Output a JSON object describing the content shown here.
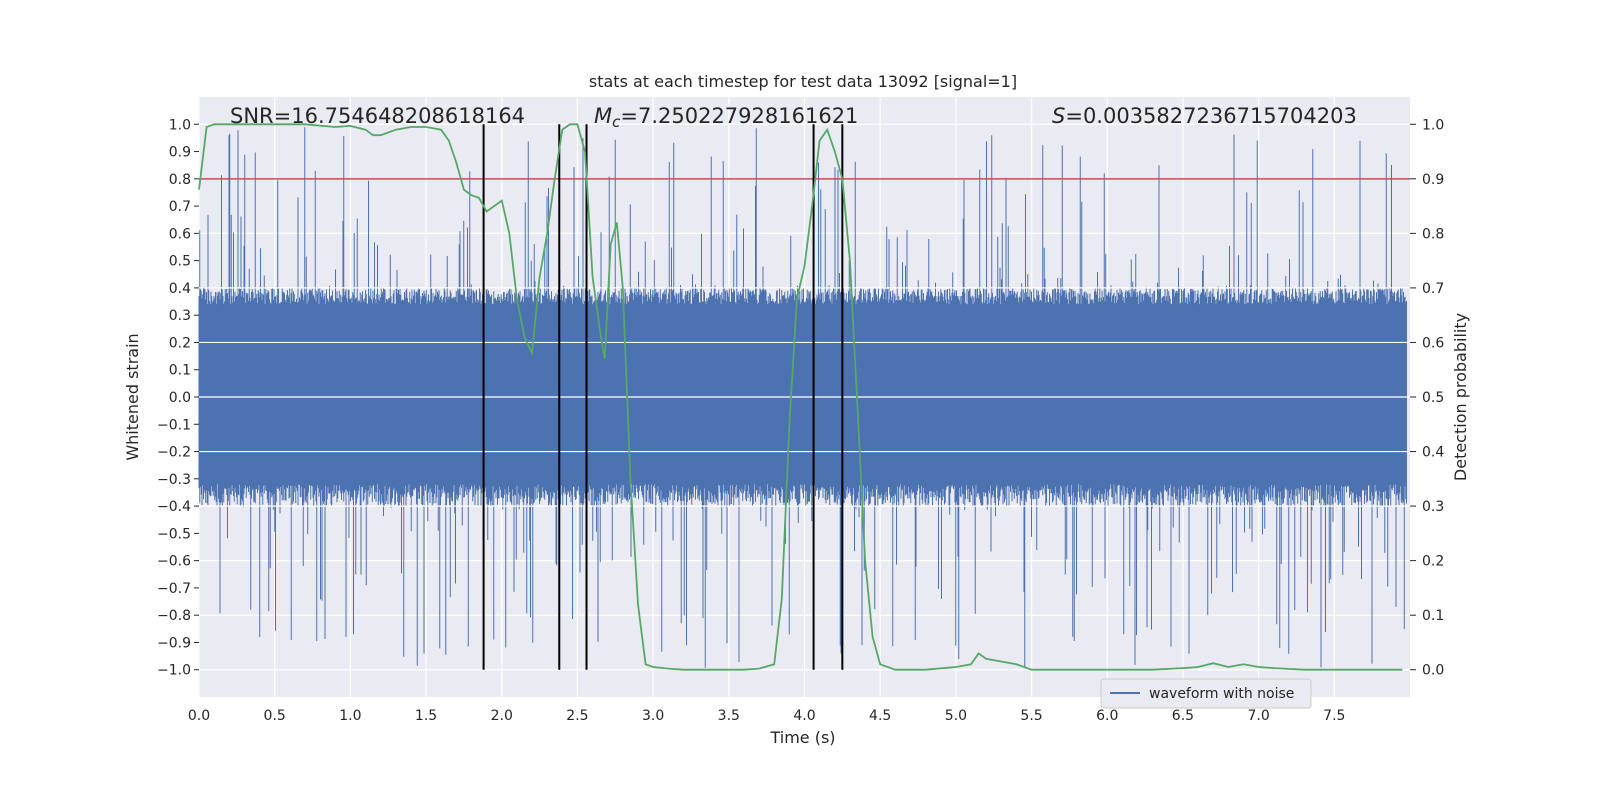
{
  "chart_data": {
    "type": "line",
    "title": "stats at each timestep for test data 13092 [signal=1]",
    "xlabel": "Time (s)",
    "ylabel": "Whitened strain",
    "y2label": "Detection probability",
    "xlim": [
      0.0,
      8.0
    ],
    "ylim": [
      -1.1,
      1.1
    ],
    "y2lim": [
      -0.05,
      1.05
    ],
    "xticks": [
      "0.0",
      "0.5",
      "1.0",
      "1.5",
      "2.0",
      "2.5",
      "3.0",
      "3.5",
      "4.0",
      "4.5",
      "5.0",
      "5.5",
      "6.0",
      "6.5",
      "7.0",
      "7.5"
    ],
    "yticks": [
      "1.0",
      "0.9",
      "0.8",
      "0.7",
      "0.6",
      "0.5",
      "0.4",
      "0.3",
      "0.2",
      "0.1",
      "0.0",
      "−0.1",
      "−0.2",
      "−0.3",
      "−0.4",
      "−0.5",
      "−0.6",
      "−0.7",
      "−0.8",
      "−0.9",
      "−1.0"
    ],
    "y2ticks": [
      "1.0",
      "0.9",
      "0.8",
      "0.7",
      "0.6",
      "0.5",
      "0.4",
      "0.3",
      "0.2",
      "0.1",
      "0.0"
    ],
    "grid": true,
    "legend": {
      "placement": "lower-right",
      "entries": [
        "waveform with noise"
      ]
    },
    "annotations": {
      "snr": "SNR=16.754648208618164",
      "mc_symbol": "M",
      "mc_sub": "c",
      "mc_value": "=7.250227928161621",
      "s_symbol": "S",
      "s_value": "=0.0035827236715704203"
    },
    "threshold": 0.9,
    "vlines": [
      1.88,
      2.38,
      2.56,
      4.06,
      4.25
    ],
    "waveform": {
      "name": "waveform with noise",
      "color": "#4c72b0",
      "t_start": 0.0,
      "t_end": 7.98,
      "envelope": 0.4,
      "peak_max": 0.99,
      "peak_min": -1.0
    },
    "probability": {
      "color": "#55a868",
      "x": [
        0.0,
        0.05,
        0.1,
        0.2,
        0.3,
        0.5,
        0.7,
        0.9,
        1.0,
        1.1,
        1.15,
        1.2,
        1.25,
        1.3,
        1.4,
        1.5,
        1.6,
        1.65,
        1.7,
        1.75,
        1.8,
        1.85,
        1.9,
        1.95,
        2.0,
        2.05,
        2.1,
        2.15,
        2.2,
        2.25,
        2.3,
        2.35,
        2.4,
        2.45,
        2.5,
        2.55,
        2.6,
        2.65,
        2.68,
        2.72,
        2.76,
        2.8,
        2.85,
        2.9,
        2.95,
        3.0,
        3.1,
        3.2,
        3.4,
        3.6,
        3.7,
        3.8,
        3.85,
        3.9,
        3.95,
        4.0,
        4.05,
        4.1,
        4.15,
        4.2,
        4.25,
        4.3,
        4.35,
        4.4,
        4.45,
        4.5,
        4.6,
        4.8,
        5.0,
        5.1,
        5.15,
        5.2,
        5.3,
        5.4,
        5.5,
        5.7,
        6.0,
        6.3,
        6.5,
        6.6,
        6.7,
        6.8,
        6.9,
        7.0,
        7.1,
        7.3,
        7.6,
        7.95
      ],
      "values": [
        0.88,
        0.995,
        1.0,
        1.0,
        1.0,
        1.0,
        1.0,
        0.995,
        0.997,
        0.99,
        0.98,
        0.98,
        0.985,
        0.99,
        0.995,
        0.995,
        0.99,
        0.97,
        0.93,
        0.88,
        0.87,
        0.865,
        0.84,
        0.85,
        0.86,
        0.8,
        0.68,
        0.61,
        0.58,
        0.72,
        0.8,
        0.9,
        0.99,
        1.0,
        1.0,
        0.95,
        0.72,
        0.62,
        0.57,
        0.78,
        0.82,
        0.7,
        0.35,
        0.12,
        0.01,
        0.005,
        0.002,
        0.0,
        0.0,
        0.0,
        0.002,
        0.01,
        0.13,
        0.45,
        0.68,
        0.74,
        0.85,
        0.97,
        0.99,
        0.95,
        0.9,
        0.75,
        0.48,
        0.2,
        0.06,
        0.01,
        0.0,
        0.0,
        0.005,
        0.01,
        0.03,
        0.02,
        0.015,
        0.01,
        0.0,
        0.0,
        0.0,
        0.0,
        0.003,
        0.005,
        0.012,
        0.005,
        0.01,
        0.005,
        0.003,
        0.0,
        0.0,
        0.0
      ]
    }
  }
}
